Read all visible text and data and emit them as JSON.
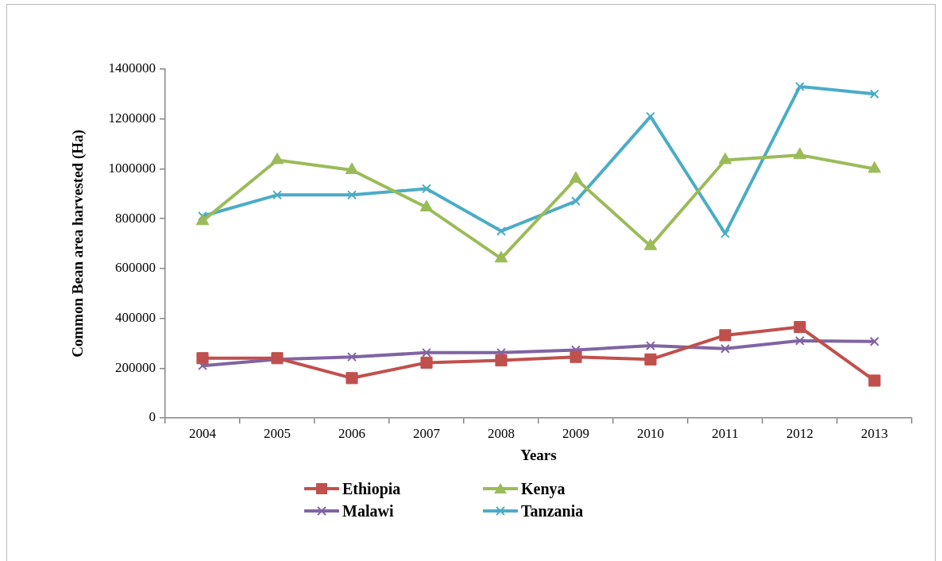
{
  "chart_data": {
    "type": "line",
    "xlabel": "Years",
    "ylabel": "Common Bean area harvested (Ha)",
    "categories": [
      "2004",
      "2005",
      "2006",
      "2007",
      "2008",
      "2009",
      "2010",
      "2011",
      "2012",
      "2013"
    ],
    "series": [
      {
        "name": "Ethiopia",
        "color": "#c0504d",
        "marker": "square",
        "values": [
          240000,
          240000,
          160000,
          222000,
          231000,
          245000,
          235000,
          332000,
          365000,
          150000
        ]
      },
      {
        "name": "Kenya",
        "color": "#9bbb59",
        "marker": "triangle",
        "values": [
          790000,
          1035000,
          995000,
          845000,
          640000,
          960000,
          690000,
          1035000,
          1055000,
          1000000
        ]
      },
      {
        "name": "Malawi",
        "color": "#8064a2",
        "marker": "cross",
        "values": [
          210000,
          235000,
          245000,
          262000,
          262000,
          273000,
          290000,
          278000,
          310000,
          307000
        ]
      },
      {
        "name": "Tanzania",
        "color": "#4bacc6",
        "marker": "cross",
        "values": [
          810000,
          895000,
          895000,
          920000,
          750000,
          870000,
          1210000,
          740000,
          1330000,
          1300000
        ]
      }
    ],
    "ylim": [
      0,
      1400000
    ],
    "yticks": [
      0,
      200000,
      400000,
      600000,
      800000,
      1000000,
      1200000,
      1400000
    ],
    "legend": "bottom",
    "line_style": "solid"
  }
}
